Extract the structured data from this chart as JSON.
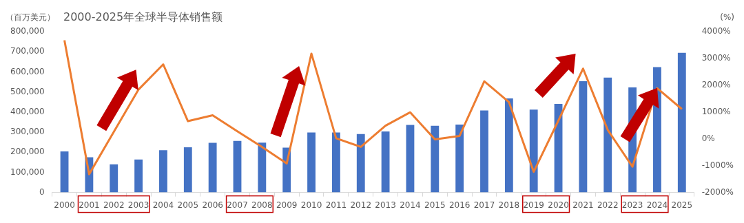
{
  "chart_data": {
    "type": "bar",
    "title": "2000-2025年全球半导体销售额",
    "ylabel": "（百万美元）",
    "y2label": "(%)",
    "categories": [
      "2000",
      "2001",
      "2002",
      "2003",
      "2004",
      "2005",
      "2006",
      "2007",
      "2008",
      "2009",
      "2010",
      "2011",
      "2012",
      "2013",
      "2014",
      "2015",
      "2016",
      "2017",
      "2018",
      "2019",
      "2020",
      "2021",
      "2022",
      "2023",
      "2024",
      "2025"
    ],
    "series": [
      {
        "color": "#4472c4",
        "values": [
          204000,
          175000,
          140000,
          164000,
          210000,
          225000,
          247000,
          256000,
          248000,
          223000,
          298000,
          298000,
          291000,
          303000,
          336000,
          332000,
          338000,
          408000,
          468000,
          412000,
          440000,
          553000,
          571000,
          523000,
          624000,
          695000
        ]
      },
      {
        "type": "line",
        "axis": "y2",
        "color": "#ed7d31",
        "marker": "none",
        "values": [
          3680,
          -1320,
          260,
          1840,
          2780,
          660,
          880,
          280,
          -300,
          -920,
          3180,
          20,
          -300,
          490,
          990,
          -20,
          110,
          2150,
          1370,
          -1230,
          680,
          2620,
          330,
          -1040,
          1890,
          1110
        ]
      }
    ],
    "ylim": [
      0,
      800000
    ],
    "yticks": [
      0,
      {
        "value": 100000,
        "label": "100,000"
      },
      {
        "value": 200000,
        "label": "200,000"
      },
      {
        "value": 300000,
        "label": "300,000"
      },
      {
        "value": 400000,
        "label": "400,000"
      },
      {
        "value": 500000,
        "label": "500,000"
      },
      {
        "value": 600000,
        "label": "600,000"
      },
      {
        "value": 700000,
        "label": "700,000"
      },
      {
        "value": 800000,
        "label": "800,000"
      }
    ],
    "y2lim": [
      -2000,
      4000
    ],
    "y2ticks": [
      {
        "value": -2000,
        "label": "-2000%"
      },
      {
        "value": -1000,
        "label": "-1000%"
      },
      {
        "value": 0,
        "label": "0%"
      },
      {
        "value": 1000,
        "label": "1000%"
      },
      {
        "value": 2000,
        "label": "2000%"
      },
      {
        "value": 3000,
        "label": "3000%"
      },
      {
        "value": 4000,
        "label": "4000%"
      }
    ]
  }
}
